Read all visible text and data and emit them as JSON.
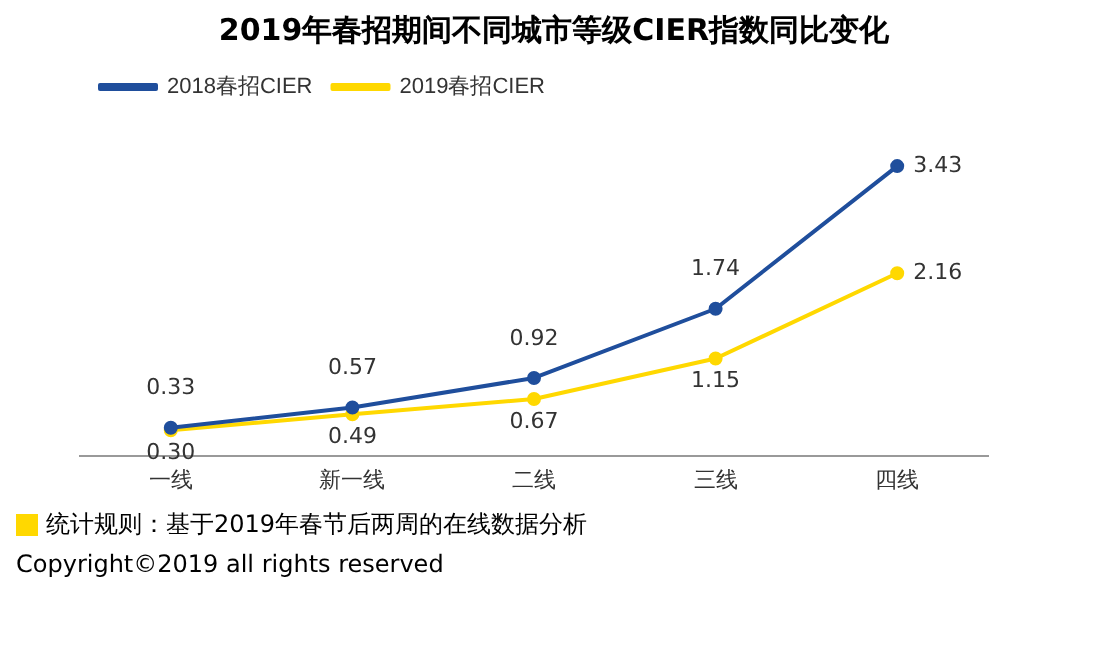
{
  "chart_data": {
    "type": "line",
    "title": "2019年春招期间不同城市等级CIER指数同比变化",
    "categories": [
      "一线",
      "新一线",
      "二线",
      "三线",
      "四线"
    ],
    "series": [
      {
        "name": "2018春招CIER",
        "color": "#1f4e9c",
        "values": [
          0.33,
          0.57,
          0.92,
          1.74,
          3.43
        ],
        "value_labels": [
          "0.33",
          "0.57",
          "0.92",
          "1.74",
          "3.43"
        ]
      },
      {
        "name": "2019春招CIER",
        "color": "#ffd800",
        "values": [
          0.3,
          0.49,
          0.67,
          1.15,
          2.16
        ],
        "value_labels": [
          "0.30",
          "0.49",
          "0.67",
          "1.15",
          "2.16"
        ]
      }
    ],
    "legend": "top left",
    "grid": false,
    "marker": "circle",
    "line_style": "solid",
    "annotations": [
      "统计规则：基于2019年春节后两周的在线数据分析",
      "Copyright©2019 all rights reserved"
    ]
  }
}
